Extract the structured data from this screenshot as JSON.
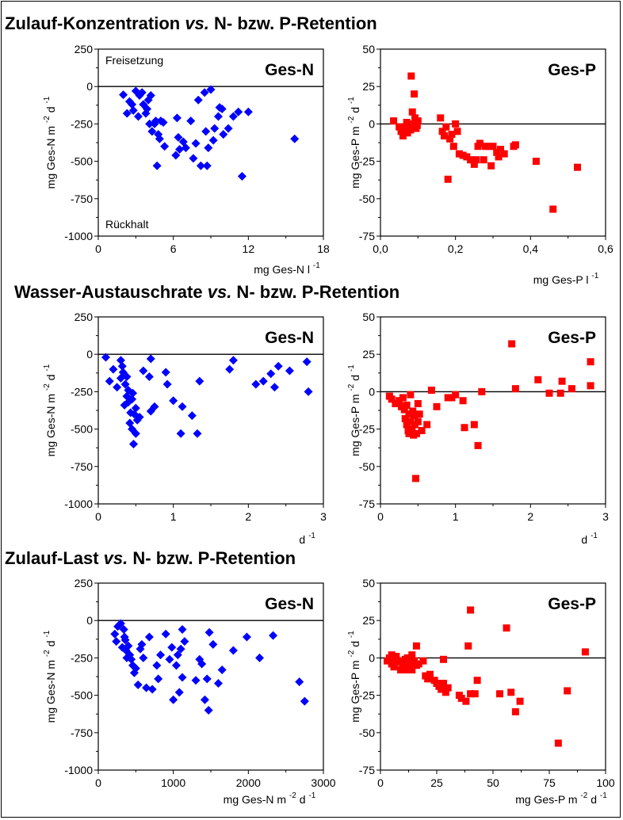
{
  "sections": [
    {
      "title_a": "Zulauf-Konzentration ",
      "title_vs": "vs.",
      "title_b": " N- bzw. P-Retention"
    },
    {
      "title_a": "Wasser-Austauschrate ",
      "title_vs": "vs.",
      "title_b": " N- bzw. P-Retention"
    },
    {
      "title_a": "Zulauf-Last ",
      "title_vs": "vs.",
      "title_b": " N- bzw. P-Retention"
    }
  ],
  "colors": {
    "n_series": "#0000ff",
    "p_series": "#ff0000"
  },
  "chart_data": [
    {
      "type": "scatter",
      "panel_label": "Ges-N",
      "marker": "diamond",
      "color": "#0000ff",
      "xlim": [
        0,
        18
      ],
      "ylim": [
        -1000,
        250
      ],
      "x_ticks": [
        "0",
        "6",
        "12",
        "18"
      ],
      "y_ticks": [
        "250",
        "0",
        "-250",
        "-500",
        "-750",
        "-1000"
      ],
      "xlabel": "mg Ges-N l -1",
      "ylabel": "mg Ges-N m -2 d -1",
      "annotations": [
        "Freisetzung",
        "Rückhalt"
      ],
      "reference_line": 0,
      "points": [
        [
          2.0,
          -55
        ],
        [
          2.3,
          -180
        ],
        [
          2.5,
          -100
        ],
        [
          2.7,
          -120
        ],
        [
          2.8,
          -160
        ],
        [
          3.0,
          -30
        ],
        [
          3.2,
          -200
        ],
        [
          3.3,
          -60
        ],
        [
          3.5,
          -40
        ],
        [
          3.6,
          -120
        ],
        [
          3.8,
          -180
        ],
        [
          3.9,
          -150
        ],
        [
          4.0,
          -90
        ],
        [
          4.1,
          -250
        ],
        [
          4.2,
          -60
        ],
        [
          4.3,
          -300
        ],
        [
          4.5,
          -250
        ],
        [
          4.6,
          -230
        ],
        [
          4.7,
          -530
        ],
        [
          4.8,
          -320
        ],
        [
          4.9,
          -350
        ],
        [
          5.0,
          -230
        ],
        [
          5.2,
          -240
        ],
        [
          5.3,
          -400
        ],
        [
          6.3,
          -210
        ],
        [
          6.2,
          -460
        ],
        [
          6.4,
          -340
        ],
        [
          6.5,
          -420
        ],
        [
          6.8,
          -370
        ],
        [
          7.0,
          -410
        ],
        [
          7.4,
          -230
        ],
        [
          7.6,
          -480
        ],
        [
          7.8,
          -380
        ],
        [
          8.0,
          -90
        ],
        [
          8.2,
          -530
        ],
        [
          8.5,
          -40
        ],
        [
          8.6,
          -300
        ],
        [
          8.7,
          -530
        ],
        [
          8.8,
          -410
        ],
        [
          9.0,
          -20
        ],
        [
          9.2,
          -360
        ],
        [
          9.3,
          -280
        ],
        [
          9.6,
          -200
        ],
        [
          9.7,
          -140
        ],
        [
          9.9,
          -150
        ],
        [
          10.0,
          -320
        ],
        [
          10.4,
          -280
        ],
        [
          10.8,
          -200
        ],
        [
          11.2,
          -170
        ],
        [
          11.5,
          -600
        ],
        [
          12.0,
          -170
        ],
        [
          15.7,
          -350
        ]
      ]
    },
    {
      "type": "scatter",
      "panel_label": "Ges-P",
      "marker": "square",
      "color": "#ff0000",
      "xlim": [
        0,
        0.6
      ],
      "ylim": [
        -75,
        50
      ],
      "x_ticks": [
        "0,0",
        "0,2",
        "0,4",
        "0,6"
      ],
      "y_ticks": [
        "50",
        "25",
        "0",
        "-25",
        "-50",
        "-75"
      ],
      "xlabel": "mg Ges-P l -1",
      "ylabel": "mg Ges-P m -2 d -1",
      "reference_line": 0,
      "points": [
        [
          0.035,
          2
        ],
        [
          0.05,
          -2
        ],
        [
          0.055,
          -5
        ],
        [
          0.06,
          -8
        ],
        [
          0.065,
          -2
        ],
        [
          0.07,
          1
        ],
        [
          0.072,
          -6
        ],
        [
          0.075,
          -1
        ],
        [
          0.08,
          -4
        ],
        [
          0.082,
          32
        ],
        [
          0.085,
          8
        ],
        [
          0.088,
          0
        ],
        [
          0.09,
          20
        ],
        [
          0.092,
          4
        ],
        [
          0.095,
          -3
        ],
        [
          0.098,
          -1
        ],
        [
          0.1,
          2
        ],
        [
          0.16,
          4
        ],
        [
          0.165,
          -5
        ],
        [
          0.17,
          -8
        ],
        [
          0.175,
          -2
        ],
        [
          0.18,
          -37
        ],
        [
          0.185,
          -10
        ],
        [
          0.19,
          -7
        ],
        [
          0.195,
          -15
        ],
        [
          0.2,
          0
        ],
        [
          0.205,
          -5
        ],
        [
          0.21,
          -20
        ],
        [
          0.22,
          -21
        ],
        [
          0.23,
          -22
        ],
        [
          0.24,
          -24
        ],
        [
          0.25,
          -27
        ],
        [
          0.255,
          -24
        ],
        [
          0.26,
          -15
        ],
        [
          0.265,
          -13
        ],
        [
          0.275,
          -24
        ],
        [
          0.28,
          -15
        ],
        [
          0.29,
          -15
        ],
        [
          0.295,
          -28
        ],
        [
          0.3,
          -15
        ],
        [
          0.31,
          -19
        ],
        [
          0.315,
          -22
        ],
        [
          0.32,
          -17
        ],
        [
          0.33,
          -20
        ],
        [
          0.355,
          -15
        ],
        [
          0.36,
          -14
        ],
        [
          0.415,
          -25
        ],
        [
          0.46,
          -57
        ],
        [
          0.525,
          -29
        ]
      ]
    },
    {
      "type": "scatter",
      "panel_label": "Ges-N",
      "marker": "diamond",
      "color": "#0000ff",
      "xlim": [
        0,
        3
      ],
      "ylim": [
        -1000,
        250
      ],
      "x_ticks": [
        "0",
        "1",
        "2",
        "3"
      ],
      "y_ticks": [
        "250",
        "0",
        "-250",
        "-500",
        "-750",
        "-1000"
      ],
      "xlabel": "d -1",
      "ylabel": "mg Ges-N m -2 d -1",
      "reference_line": 0,
      "points": [
        [
          0.1,
          -20
        ],
        [
          0.15,
          -180
        ],
        [
          0.2,
          -100
        ],
        [
          0.25,
          -220
        ],
        [
          0.3,
          -160
        ],
        [
          0.3,
          -40
        ],
        [
          0.32,
          -80
        ],
        [
          0.33,
          -120
        ],
        [
          0.35,
          -340
        ],
        [
          0.36,
          -200
        ],
        [
          0.38,
          -280
        ],
        [
          0.38,
          -150
        ],
        [
          0.4,
          -320
        ],
        [
          0.4,
          -240
        ],
        [
          0.42,
          -460
        ],
        [
          0.43,
          -390
        ],
        [
          0.45,
          -500
        ],
        [
          0.45,
          -300
        ],
        [
          0.46,
          -260
        ],
        [
          0.47,
          -600
        ],
        [
          0.48,
          -400
        ],
        [
          0.5,
          -360
        ],
        [
          0.5,
          -530
        ],
        [
          0.52,
          -440
        ],
        [
          0.55,
          -420
        ],
        [
          0.6,
          -110
        ],
        [
          0.68,
          -150
        ],
        [
          0.7,
          -30
        ],
        [
          0.7,
          -380
        ],
        [
          0.75,
          -350
        ],
        [
          0.9,
          -120
        ],
        [
          0.92,
          -200
        ],
        [
          1.0,
          -310
        ],
        [
          1.1,
          -530
        ],
        [
          1.12,
          -350
        ],
        [
          1.25,
          -410
        ],
        [
          1.32,
          -530
        ],
        [
          1.35,
          -180
        ],
        [
          1.75,
          -100
        ],
        [
          1.8,
          -40
        ],
        [
          2.1,
          -200
        ],
        [
          2.2,
          -180
        ],
        [
          2.3,
          -130
        ],
        [
          2.35,
          -220
        ],
        [
          2.4,
          -80
        ],
        [
          2.55,
          -110
        ],
        [
          2.78,
          -50
        ],
        [
          2.8,
          -250
        ]
      ]
    },
    {
      "type": "scatter",
      "panel_label": "Ges-P",
      "marker": "square",
      "color": "#ff0000",
      "xlim": [
        0,
        3
      ],
      "ylim": [
        -75,
        50
      ],
      "x_ticks": [
        "0",
        "1",
        "2",
        "3"
      ],
      "y_ticks": [
        "50",
        "25",
        "0",
        "-25",
        "-50",
        "-75"
      ],
      "xlabel": "d -1",
      "ylabel": "mg Ges-P m -2 d -1",
      "reference_line": 0,
      "points": [
        [
          0.12,
          -3
        ],
        [
          0.15,
          -5
        ],
        [
          0.2,
          -8
        ],
        [
          0.25,
          -6
        ],
        [
          0.28,
          -10
        ],
        [
          0.3,
          -4
        ],
        [
          0.32,
          -12
        ],
        [
          0.33,
          -18
        ],
        [
          0.35,
          -9
        ],
        [
          0.35,
          -22
        ],
        [
          0.37,
          -26
        ],
        [
          0.38,
          -15
        ],
        [
          0.38,
          -28
        ],
        [
          0.4,
          -2
        ],
        [
          0.4,
          -20
        ],
        [
          0.42,
          -25
        ],
        [
          0.43,
          -13
        ],
        [
          0.44,
          -29
        ],
        [
          0.45,
          -16
        ],
        [
          0.46,
          -22
        ],
        [
          0.47,
          -58
        ],
        [
          0.48,
          -28
        ],
        [
          0.5,
          -8
        ],
        [
          0.5,
          -20
        ],
        [
          0.52,
          -15
        ],
        [
          0.55,
          -26
        ],
        [
          0.62,
          -22
        ],
        [
          0.68,
          1
        ],
        [
          0.75,
          -10
        ],
        [
          0.9,
          -4
        ],
        [
          0.95,
          -4
        ],
        [
          1.0,
          -2
        ],
        [
          1.1,
          -6
        ],
        [
          1.12,
          -24
        ],
        [
          1.25,
          -22
        ],
        [
          1.3,
          -36
        ],
        [
          1.35,
          0
        ],
        [
          1.75,
          32
        ],
        [
          1.8,
          2
        ],
        [
          2.1,
          8
        ],
        [
          2.25,
          -1
        ],
        [
          2.4,
          -1
        ],
        [
          2.42,
          7
        ],
        [
          2.55,
          2
        ],
        [
          2.8,
          4
        ],
        [
          2.8,
          20
        ]
      ]
    },
    {
      "type": "scatter",
      "panel_label": "Ges-N",
      "marker": "diamond",
      "color": "#0000ff",
      "xlim": [
        0,
        3000
      ],
      "ylim": [
        -1000,
        250
      ],
      "x_ticks": [
        "0",
        "1000",
        "2000",
        "3000"
      ],
      "y_ticks": [
        "250",
        "0",
        "-250",
        "-500",
        "-750",
        "-1000"
      ],
      "xlabel": "mg Ges-N m -2 d -1",
      "ylabel": "mg Ges-N m -2 d -1",
      "reference_line": 0,
      "points": [
        [
          220,
          -90
        ],
        [
          240,
          -140
        ],
        [
          260,
          -40
        ],
        [
          280,
          -30
        ],
        [
          300,
          -20
        ],
        [
          320,
          -180
        ],
        [
          340,
          -60
        ],
        [
          350,
          -110
        ],
        [
          360,
          -130
        ],
        [
          370,
          -200
        ],
        [
          380,
          -250
        ],
        [
          400,
          -170
        ],
        [
          420,
          -230
        ],
        [
          440,
          -260
        ],
        [
          460,
          -300
        ],
        [
          480,
          -350
        ],
        [
          500,
          -320
        ],
        [
          530,
          -430
        ],
        [
          560,
          -190
        ],
        [
          580,
          -160
        ],
        [
          600,
          -250
        ],
        [
          640,
          -450
        ],
        [
          680,
          -110
        ],
        [
          720,
          -460
        ],
        [
          780,
          -300
        ],
        [
          800,
          -390
        ],
        [
          830,
          -230
        ],
        [
          900,
          -90
        ],
        [
          950,
          -260
        ],
        [
          980,
          -180
        ],
        [
          1000,
          -530
        ],
        [
          1040,
          -300
        ],
        [
          1060,
          -230
        ],
        [
          1080,
          -480
        ],
        [
          1100,
          -190
        ],
        [
          1120,
          -380
        ],
        [
          1120,
          -60
        ],
        [
          1150,
          -140
        ],
        [
          1300,
          -400
        ],
        [
          1350,
          -260
        ],
        [
          1380,
          -290
        ],
        [
          1420,
          -530
        ],
        [
          1450,
          -390
        ],
        [
          1470,
          -600
        ],
        [
          1480,
          -80
        ],
        [
          1530,
          -160
        ],
        [
          1600,
          -420
        ],
        [
          1650,
          -330
        ],
        [
          1800,
          -200
        ],
        [
          1980,
          -110
        ],
        [
          2150,
          -250
        ],
        [
          2330,
          -100
        ],
        [
          2680,
          -410
        ],
        [
          2750,
          -540
        ]
      ]
    },
    {
      "type": "scatter",
      "panel_label": "Ges-P",
      "marker": "square",
      "color": "#ff0000",
      "xlim": [
        0,
        100
      ],
      "ylim": [
        -75,
        50
      ],
      "x_ticks": [
        "0",
        "25",
        "50",
        "75",
        "100"
      ],
      "y_ticks": [
        "50",
        "25",
        "0",
        "-25",
        "-50",
        "-75"
      ],
      "xlabel": "mg Ges-P m -2 d -1",
      "ylabel": "mg Ges-P m -2 d -1",
      "reference_line": 0,
      "points": [
        [
          3,
          -2
        ],
        [
          4,
          0
        ],
        [
          5,
          2
        ],
        [
          5,
          -4
        ],
        [
          6,
          -6
        ],
        [
          7,
          -1
        ],
        [
          7,
          1
        ],
        [
          8,
          -3
        ],
        [
          9,
          -8
        ],
        [
          10,
          -2
        ],
        [
          10,
          -6
        ],
        [
          11,
          -1
        ],
        [
          11,
          -8
        ],
        [
          12,
          0
        ],
        [
          12,
          -4
        ],
        [
          13,
          -6
        ],
        [
          14,
          2
        ],
        [
          14,
          -8
        ],
        [
          15,
          -2
        ],
        [
          16,
          -5
        ],
        [
          16,
          8
        ],
        [
          17,
          -4
        ],
        [
          19,
          -2
        ],
        [
          20,
          -12
        ],
        [
          21,
          -14
        ],
        [
          22,
          -11
        ],
        [
          24,
          -15
        ],
        [
          25,
          -17
        ],
        [
          26,
          -19
        ],
        [
          27,
          -21
        ],
        [
          28,
          -1
        ],
        [
          28,
          -17
        ],
        [
          29,
          -23
        ],
        [
          30,
          -20
        ],
        [
          35,
          -25
        ],
        [
          36,
          -27
        ],
        [
          38,
          -29
        ],
        [
          39,
          8
        ],
        [
          40,
          -24
        ],
        [
          40,
          32
        ],
        [
          42,
          -24
        ],
        [
          43,
          -15
        ],
        [
          53,
          -24
        ],
        [
          56,
          20
        ],
        [
          58,
          -23
        ],
        [
          60,
          -36
        ],
        [
          62,
          -29
        ],
        [
          79,
          -57
        ],
        [
          83,
          -22
        ],
        [
          91,
          4
        ]
      ]
    }
  ]
}
